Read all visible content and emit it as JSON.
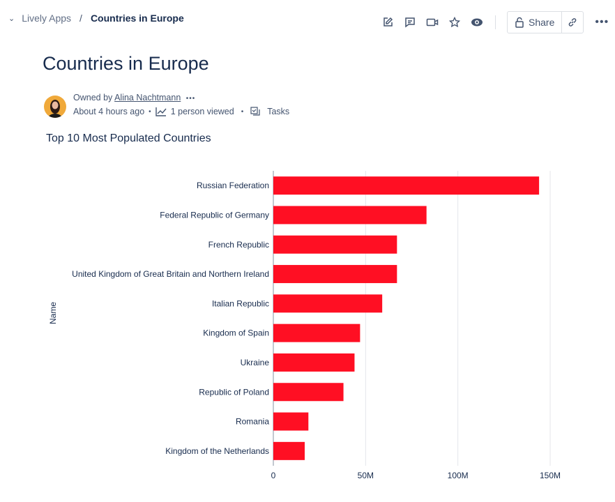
{
  "breadcrumb": {
    "space": "Lively Apps",
    "separator": "/",
    "current": "Countries in Europe"
  },
  "toolbar": {
    "share_label": "Share",
    "icons": [
      "edit-icon",
      "comment-icon",
      "video-icon",
      "star-icon",
      "watch-icon",
      "lock-icon",
      "link-icon",
      "more-icon"
    ]
  },
  "page": {
    "title": "Countries in Europe"
  },
  "meta": {
    "owned_by": "Owned by",
    "owner": "Alina Nachtmann",
    "more": "•••",
    "updated": "About 4 hours ago",
    "viewed": "1 person viewed",
    "tasks": "Tasks"
  },
  "chart_data": {
    "type": "bar",
    "orientation": "horizontal",
    "title": "Top 10 Most Populated Countries",
    "ylabel": "Name",
    "xlabel": "",
    "categories": [
      "Russian Federation",
      "Federal Republic of Germany",
      "French Republic",
      "United Kingdom of Great Britain and Northern Ireland",
      "Italian Republic",
      "Kingdom of Spain",
      "Ukraine",
      "Republic of Poland",
      "Romania",
      "Kingdom of the Netherlands"
    ],
    "values": [
      144000000,
      83000000,
      67000000,
      67000000,
      59000000,
      47000000,
      44000000,
      38000000,
      19000000,
      17000000
    ],
    "xlim": [
      0,
      155000000
    ],
    "xticks": [
      0,
      50000000,
      100000000,
      150000000
    ],
    "xtick_labels": [
      "0",
      "50M",
      "100M",
      "150M"
    ],
    "grid": true,
    "bar_color": "#ff0f23"
  }
}
